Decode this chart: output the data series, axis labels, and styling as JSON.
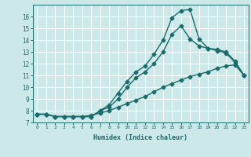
{
  "xlabel": "Humidex (Indice chaleur)",
  "ylabel": "",
  "background_color": "#cce8e8",
  "grid_color": "#ffffff",
  "line_color": "#1a6b6b",
  "xlim": [
    -0.5,
    23.5
  ],
  "ylim": [
    7,
    17
  ],
  "yticks": [
    7,
    8,
    9,
    10,
    11,
    12,
    13,
    14,
    15,
    16
  ],
  "xticks": [
    0,
    1,
    2,
    3,
    4,
    5,
    6,
    7,
    8,
    9,
    10,
    11,
    12,
    13,
    14,
    15,
    16,
    17,
    18,
    19,
    20,
    21,
    22,
    23
  ],
  "curve1_x": [
    0,
    1,
    2,
    3,
    4,
    5,
    6,
    7,
    8,
    9,
    10,
    11,
    12,
    13,
    14,
    15,
    16,
    17,
    18,
    19,
    20,
    21,
    22,
    23
  ],
  "curve1_y": [
    7.7,
    7.7,
    7.5,
    7.5,
    7.5,
    7.5,
    7.5,
    8.0,
    8.5,
    9.5,
    10.5,
    11.3,
    11.8,
    12.8,
    14.0,
    15.9,
    16.5,
    16.6,
    14.1,
    13.3,
    13.2,
    13.0,
    12.2,
    11.0
  ],
  "curve2_x": [
    0,
    1,
    2,
    3,
    4,
    5,
    6,
    7,
    8,
    9,
    10,
    11,
    12,
    13,
    14,
    15,
    16,
    17,
    18,
    19,
    20,
    21,
    22,
    23
  ],
  "curve2_y": [
    7.7,
    7.7,
    7.5,
    7.5,
    7.5,
    7.5,
    7.5,
    8.0,
    8.3,
    9.0,
    10.0,
    10.8,
    11.3,
    12.0,
    13.0,
    14.5,
    15.2,
    14.1,
    13.5,
    13.3,
    13.1,
    12.9,
    12.1,
    11.0
  ],
  "curve3_x": [
    0,
    1,
    2,
    3,
    4,
    5,
    6,
    7,
    8,
    9,
    10,
    11,
    12,
    13,
    14,
    15,
    16,
    17,
    18,
    19,
    20,
    21,
    22,
    23
  ],
  "curve3_y": [
    7.7,
    7.7,
    7.5,
    7.5,
    7.5,
    7.5,
    7.6,
    7.8,
    8.0,
    8.3,
    8.6,
    8.9,
    9.2,
    9.6,
    10.0,
    10.3,
    10.6,
    10.9,
    11.1,
    11.3,
    11.6,
    11.8,
    11.9,
    11.0
  ],
  "marker": "D",
  "markersize": 2.5,
  "linewidth": 1.0
}
